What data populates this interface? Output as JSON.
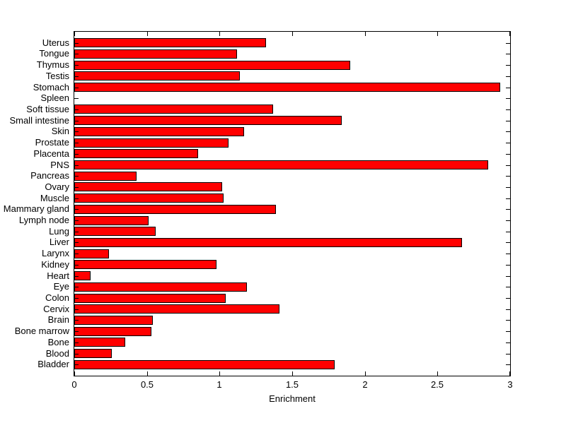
{
  "figure": {
    "background_color": "#FFFFFF"
  },
  "chart_data": {
    "type": "bar",
    "orientation": "horizontal",
    "title": "",
    "xlabel": "Enrichment",
    "ylabel": "",
    "categories": [
      "Uterus",
      "Tongue",
      "Thymus",
      "Testis",
      "Stomach",
      "Spleen",
      "Soft tissue",
      "Small intestine",
      "Skin",
      "Prostate",
      "Placenta",
      "PNS",
      "Pancreas",
      "Ovary",
      "Muscle",
      "Mammary gland",
      "Lymph node",
      "Lung",
      "Liver",
      "Larynx",
      "Kidney",
      "Heart",
      "Eye",
      "Colon",
      "Cervix",
      "Brain",
      "Bone marrow",
      "Bone",
      "Blood",
      "Bladder"
    ],
    "values": [
      1.32,
      1.12,
      1.9,
      1.14,
      2.93,
      0,
      1.37,
      1.84,
      1.17,
      1.06,
      0.85,
      2.85,
      0.43,
      1.02,
      1.03,
      1.39,
      0.51,
      0.56,
      2.67,
      0.24,
      0.98,
      0.11,
      1.19,
      1.04,
      1.41,
      0.54,
      0.53,
      0.35,
      0.26,
      1.79
    ],
    "xlim": [
      0,
      3
    ],
    "xticks": [
      0,
      0.5,
      1,
      1.5,
      2,
      2.5,
      3
    ],
    "xtick_labels": [
      "0",
      "0.5",
      "1",
      "1.5",
      "2",
      "2.5",
      "3"
    ],
    "bar_color": "#FF0000",
    "bar_edge_color": "#000000",
    "axis_color": "#000000",
    "grid": false,
    "legend_position": "none"
  }
}
